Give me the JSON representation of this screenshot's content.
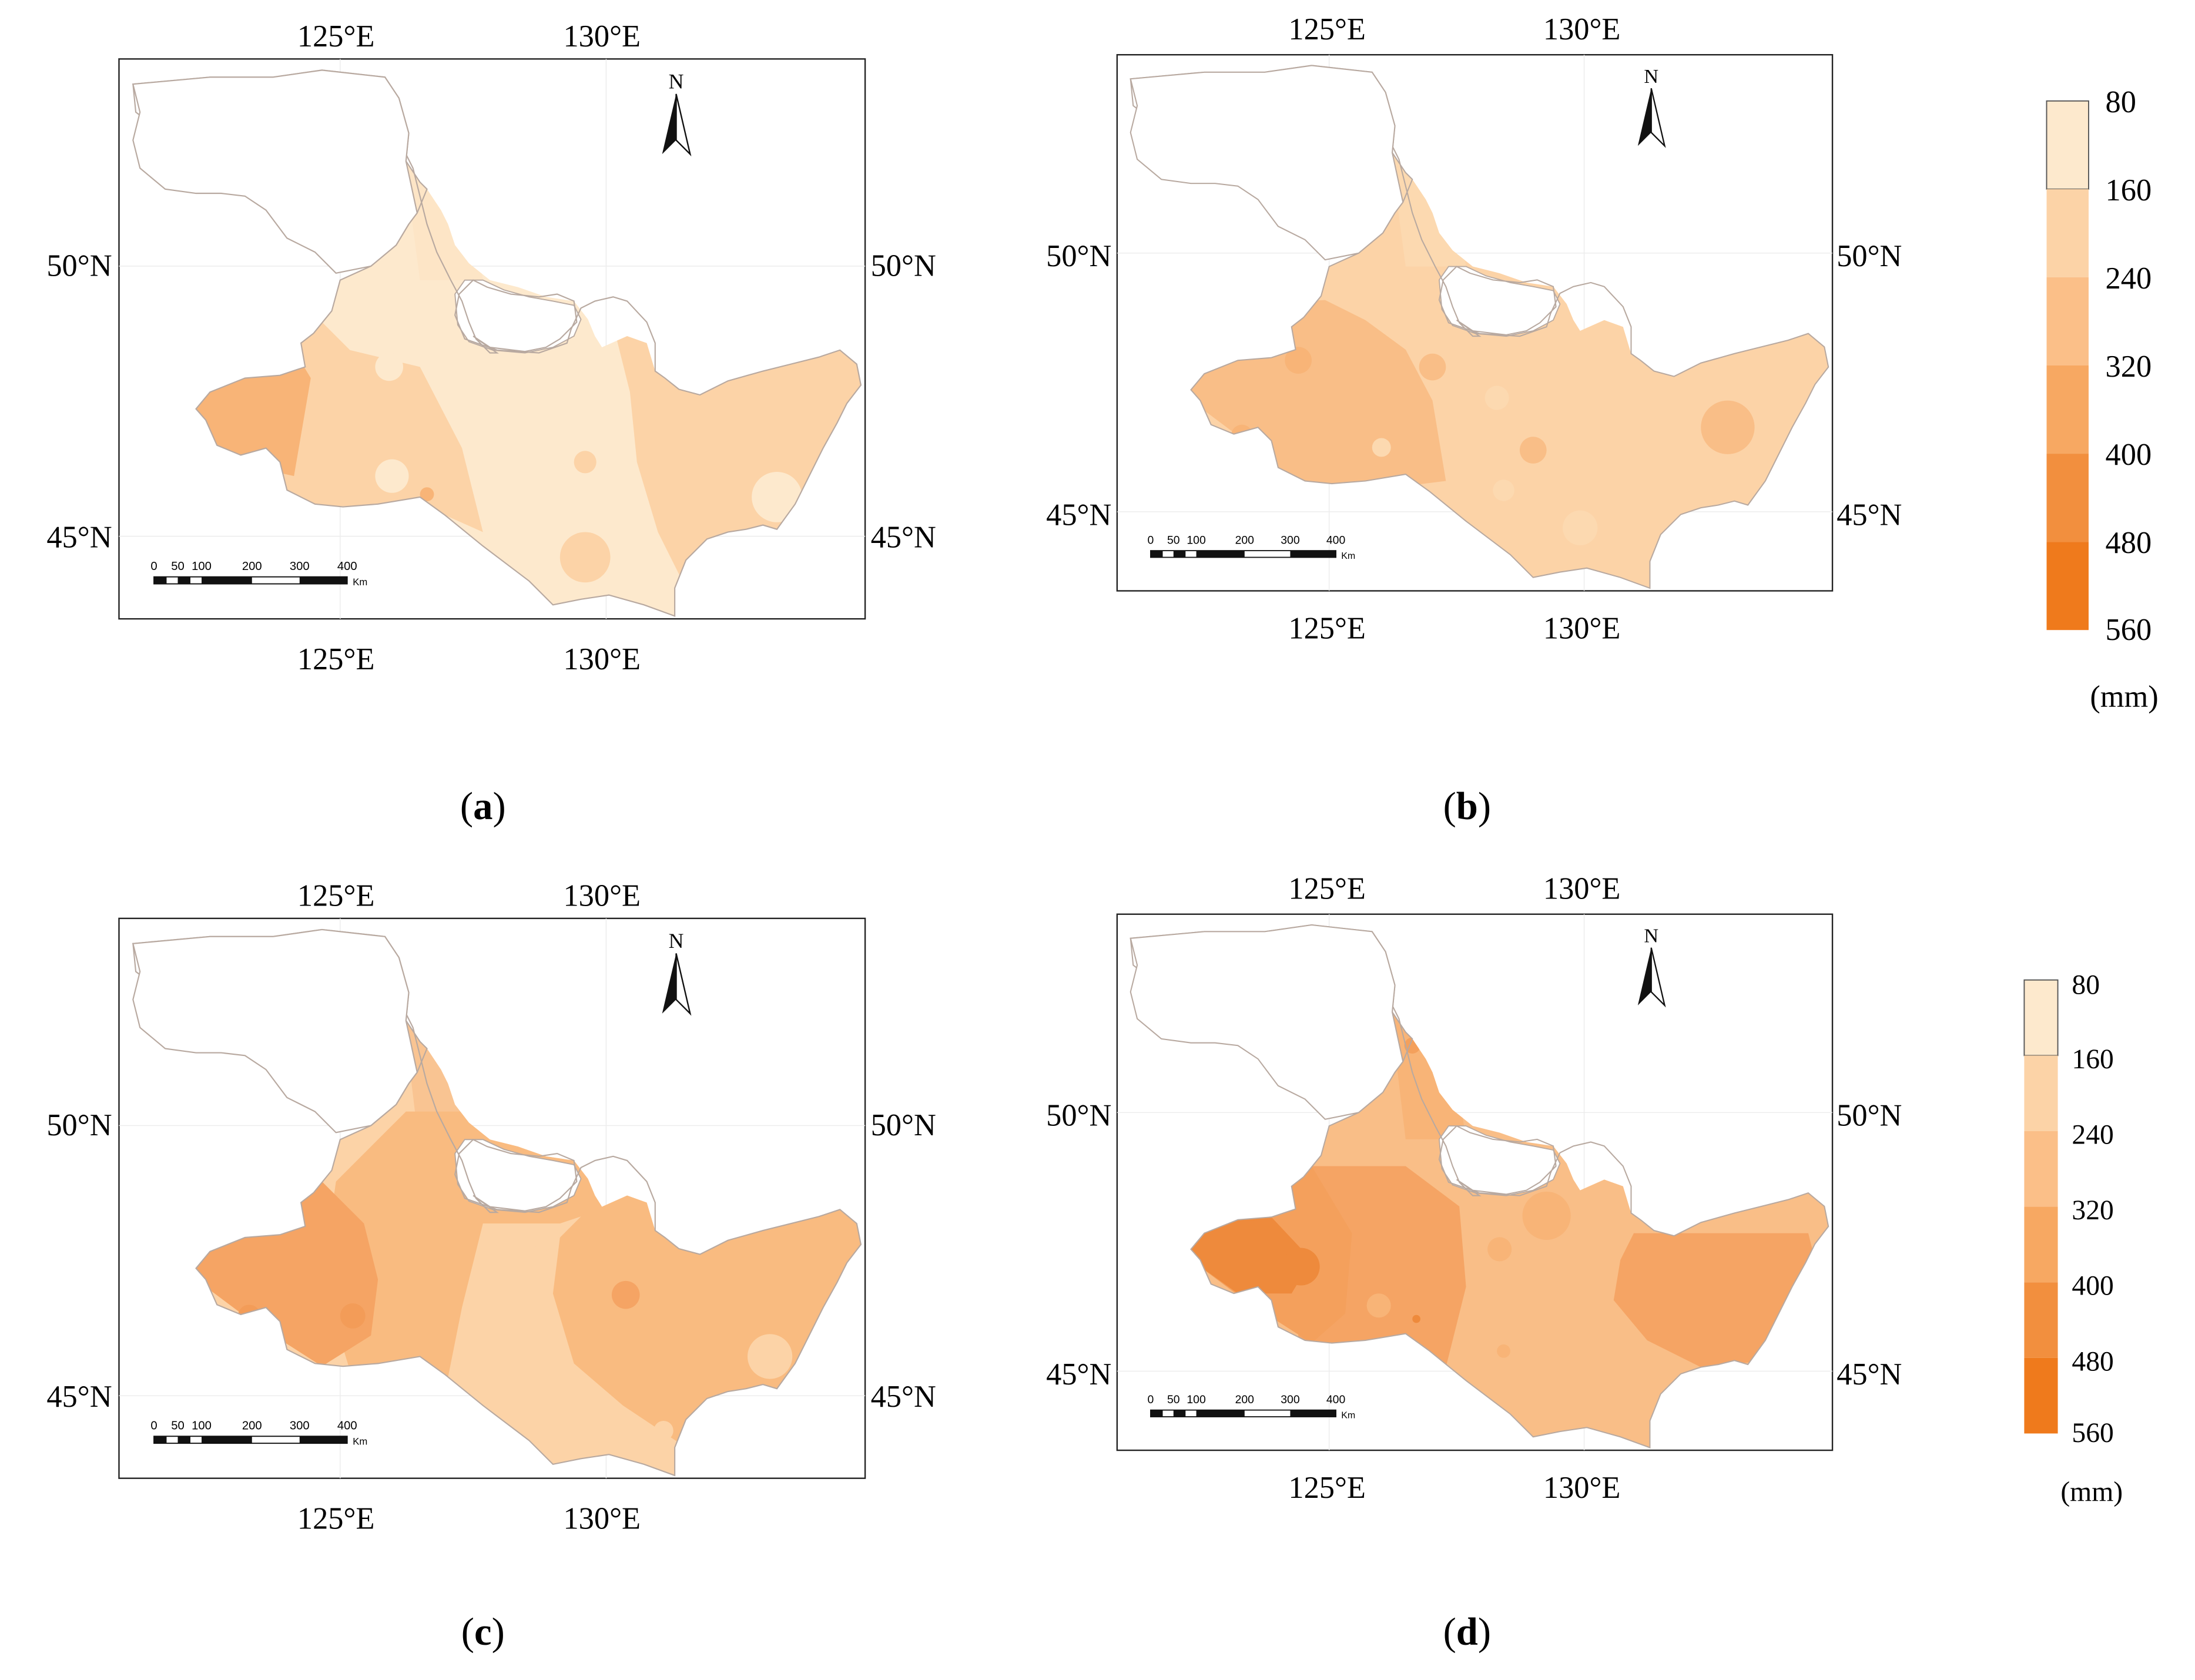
{
  "panels": [
    {
      "label": "a",
      "lon_labels": [
        "125°E",
        "130°E"
      ],
      "lat_labels": [
        "50°N",
        "45°N"
      ],
      "north": "N",
      "scale_ticks": [
        "0",
        "50",
        "100",
        "200",
        "300",
        "400"
      ],
      "scale_unit": "Km",
      "fills": {
        "base": "#fde9cd",
        "west": "#fcd3a7",
        "far_west": "#f8b477",
        "east": "#fcd3a7",
        "north_strip": "#fde5c6"
      }
    },
    {
      "label": "b",
      "lon_labels": [
        "125°E",
        "130°E"
      ],
      "lat_labels": [
        "50°N",
        "45°N"
      ],
      "north": "N",
      "scale_ticks": [
        "0",
        "50",
        "100",
        "200",
        "300",
        "400"
      ],
      "scale_unit": "Km",
      "fills": {
        "base": "#fcd3a7",
        "west": "#f9be87",
        "far_west": "#f8b477",
        "east": "#fcd3a7",
        "north_strip": "#fcd9b0"
      }
    },
    {
      "label": "c",
      "lon_labels": [
        "125°E",
        "130°E"
      ],
      "lat_labels": [
        "50°N",
        "45°N"
      ],
      "north": "N",
      "scale_ticks": [
        "0",
        "50",
        "100",
        "200",
        "300",
        "400"
      ],
      "scale_unit": "Km",
      "fills": {
        "base": "#fcd3a7",
        "west": "#f5a464",
        "far_west": "#f39c58",
        "east": "#f9bb80",
        "north_strip": "#f9c492"
      }
    },
    {
      "label": "d",
      "lon_labels": [
        "125°E",
        "130°E"
      ],
      "lat_labels": [
        "50°N",
        "45°N"
      ],
      "north": "N",
      "scale_ticks": [
        "0",
        "50",
        "100",
        "200",
        "300",
        "400"
      ],
      "scale_unit": "Km",
      "fills": {
        "base": "#f9be87",
        "west": "#f4a05c",
        "far_west": "#ee8a3c",
        "east": "#f5a464",
        "north_strip": "#f8b477"
      }
    }
  ],
  "legends": [
    {
      "ticks": [
        "80",
        "160",
        "240",
        "320",
        "400",
        "480",
        "560"
      ],
      "unit": "(mm)"
    },
    {
      "ticks": [
        "80",
        "160",
        "240",
        "320",
        "400",
        "480",
        "560"
      ],
      "unit": "(mm)"
    }
  ],
  "legend_colors": [
    "#fde9cd",
    "#fcd3a7",
    "#fbbf88",
    "#f7a862",
    "#f28f3e",
    "#ef7a1c"
  ]
}
